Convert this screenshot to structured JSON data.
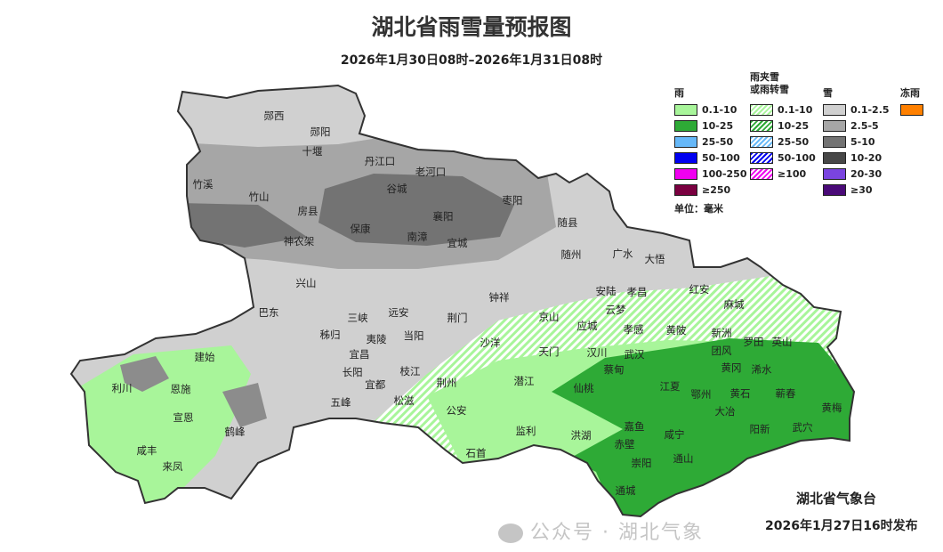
{
  "title": "湖北省雨雪量预报图",
  "subtitle": "2026年1月30日08时–2026年1月31日08时",
  "legend": {
    "groups": [
      {
        "title": "雨",
        "items": [
          {
            "label": "0.1-10",
            "color": "#a8f59a"
          },
          {
            "label": "10-25",
            "color": "#2eaa36"
          },
          {
            "label": "25-50",
            "color": "#66b8f8"
          },
          {
            "label": "50-100",
            "color": "#0000f0"
          },
          {
            "label": "100-250",
            "color": "#f000f0"
          },
          {
            "label": "≥250",
            "color": "#7a0040"
          }
        ]
      },
      {
        "title": "雨夹雪\n或雨转雪",
        "items": [
          {
            "label": "0.1-10",
            "color": "#a8f59a",
            "hatched": true
          },
          {
            "label": "10-25",
            "color": "#2eaa36",
            "hatched": true
          },
          {
            "label": "25-50",
            "color": "#66b8f8",
            "hatched": true
          },
          {
            "label": "50-100",
            "color": "#0000f0",
            "hatched": true
          },
          {
            "label": "≥100",
            "color": "#f000f0",
            "hatched": true
          }
        ]
      },
      {
        "title": "雪",
        "items": [
          {
            "label": "0.1-2.5",
            "color": "#d0d0d0"
          },
          {
            "label": "2.5-5",
            "color": "#a6a6a6"
          },
          {
            "label": "5-10",
            "color": "#737373"
          },
          {
            "label": "10-20",
            "color": "#474747"
          },
          {
            "label": "20-30",
            "color": "#7a44e0"
          },
          {
            "label": "≥30",
            "color": "#4a0a78"
          }
        ]
      },
      {
        "title": "冻雨",
        "items": [
          {
            "label": "",
            "color": "#ff8000"
          }
        ]
      }
    ],
    "unit": "单位：毫米"
  },
  "cities": [
    "郧西",
    "郧阳",
    "十堰",
    "丹江口",
    "老河口",
    "竹溪",
    "竹山",
    "谷城",
    "枣阳",
    "房县",
    "保康",
    "襄阳",
    "随县",
    "神农架",
    "南漳",
    "宜城",
    "随州",
    "广水",
    "大悟",
    "兴山",
    "钟祥",
    "安陆",
    "孝昌",
    "红安",
    "麻城",
    "巴东",
    "远安",
    "荆门",
    "京山",
    "应城",
    "云梦",
    "三峡",
    "秭归",
    "夷陵",
    "当阳",
    "沙洋",
    "孝感",
    "黄陂",
    "新洲",
    "罗田",
    "英山",
    "建始",
    "宜昌",
    "天门",
    "汉川",
    "武汉",
    "团风",
    "长阳",
    "蔡甸",
    "黄冈",
    "浠水",
    "利川",
    "恩施",
    "宜都",
    "枝江",
    "荆州",
    "潜江",
    "仙桃",
    "江夏",
    "鄂州",
    "黄石",
    "蕲春",
    "五峰",
    "松滋",
    "宣恩",
    "公安",
    "大冶",
    "黄梅",
    "鹤峰",
    "监利",
    "洪湖",
    "嘉鱼",
    "咸宁",
    "阳新",
    "武穴",
    "咸丰",
    "石首",
    "赤壁",
    "崇阳",
    "通山",
    "来凤",
    "通城"
  ],
  "issuer": "湖北省气象台",
  "issued": "2026年1月27日16时发布",
  "watermark": "公众号 · 湖北气象"
}
